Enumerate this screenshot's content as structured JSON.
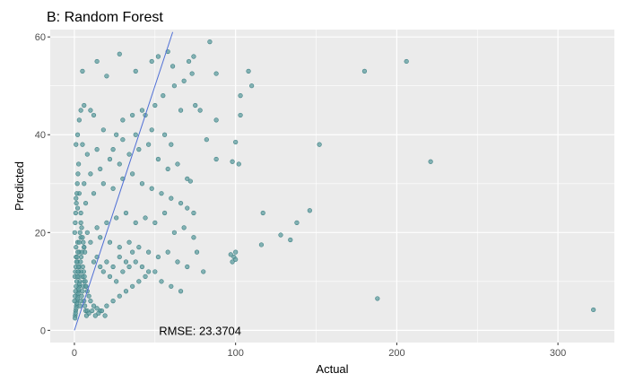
{
  "chart_data": {
    "type": "scatter",
    "title": "B: Random Forest",
    "xlabel": "Actual",
    "ylabel": "Predicted",
    "xlim": [
      -15,
      335
    ],
    "ylim": [
      -2.5,
      61.5
    ],
    "x_ticks": [
      0,
      100,
      200,
      300
    ],
    "y_ticks": [
      0,
      20,
      40,
      60
    ],
    "x_tick_labels": [
      "0",
      "100",
      "200",
      "300"
    ],
    "y_tick_labels": [
      "0",
      "20",
      "40",
      "60"
    ],
    "grid": true,
    "annotation": "RMSE: 23.3704",
    "annotation_pos": {
      "x": 78,
      "y": 0
    },
    "reference_line": {
      "slope": 1,
      "intercept": 0
    },
    "colors": {
      "points": "#5f9ea0",
      "point_edge": "#3d7f82",
      "line": "#4f6fd6",
      "panel": "#ebebeb",
      "grid": "#ffffff"
    },
    "points": [
      [
        206,
        55
      ],
      [
        180,
        53
      ],
      [
        152,
        38
      ],
      [
        221,
        34.5
      ],
      [
        188,
        6.5
      ],
      [
        322,
        4.2
      ],
      [
        146,
        24.5
      ],
      [
        138,
        22
      ],
      [
        134,
        18.5
      ],
      [
        128,
        19.5
      ],
      [
        116,
        17.5
      ],
      [
        117,
        24
      ],
      [
        108,
        53
      ],
      [
        110,
        50
      ],
      [
        100,
        38.5
      ],
      [
        98,
        34.5
      ],
      [
        102,
        34
      ],
      [
        103,
        48
      ],
      [
        103,
        44
      ],
      [
        100,
        16
      ],
      [
        99,
        15
      ],
      [
        97,
        15.5
      ],
      [
        100,
        14.5
      ],
      [
        98,
        14
      ],
      [
        84,
        59
      ],
      [
        74,
        56
      ],
      [
        71,
        55
      ],
      [
        73,
        52.5
      ],
      [
        88,
        52.5
      ],
      [
        61,
        54
      ],
      [
        52,
        56
      ],
      [
        28,
        56.5
      ],
      [
        5,
        53
      ],
      [
        14,
        55
      ],
      [
        20,
        52
      ],
      [
        38,
        53
      ],
      [
        48,
        55
      ],
      [
        58,
        57
      ],
      [
        88,
        43
      ],
      [
        78,
        45
      ],
      [
        75,
        46
      ],
      [
        66,
        45
      ],
      [
        82,
        39
      ],
      [
        88,
        35
      ],
      [
        72,
        30.5
      ],
      [
        70,
        31
      ],
      [
        55,
        48
      ],
      [
        62,
        50
      ],
      [
        68,
        51
      ],
      [
        50,
        46
      ],
      [
        44,
        44
      ],
      [
        42,
        45
      ],
      [
        36,
        44
      ],
      [
        30,
        43
      ],
      [
        26,
        40
      ],
      [
        18,
        41
      ],
      [
        12,
        44
      ],
      [
        10,
        45
      ],
      [
        6,
        46
      ],
      [
        4,
        45
      ],
      [
        3,
        43
      ],
      [
        2,
        40
      ],
      [
        1,
        38
      ],
      [
        5,
        38
      ],
      [
        8,
        36
      ],
      [
        14,
        37
      ],
      [
        22,
        35
      ],
      [
        28,
        34
      ],
      [
        34,
        36
      ],
      [
        40,
        37
      ],
      [
        46,
        38
      ],
      [
        52,
        35
      ],
      [
        58,
        33
      ],
      [
        64,
        34
      ],
      [
        60,
        38
      ],
      [
        56,
        40
      ],
      [
        48,
        41
      ],
      [
        38,
        40
      ],
      [
        30,
        39
      ],
      [
        24,
        37
      ],
      [
        16,
        33
      ],
      [
        10,
        32
      ],
      [
        6,
        30
      ],
      [
        3,
        28
      ],
      [
        1,
        27
      ],
      [
        2,
        25
      ],
      [
        4,
        24
      ],
      [
        7,
        26
      ],
      [
        12,
        28
      ],
      [
        18,
        30
      ],
      [
        24,
        29
      ],
      [
        30,
        31
      ],
      [
        36,
        32
      ],
      [
        42,
        30
      ],
      [
        48,
        29
      ],
      [
        54,
        28
      ],
      [
        60,
        27
      ],
      [
        66,
        26
      ],
      [
        70,
        25
      ],
      [
        74,
        24
      ],
      [
        56,
        24
      ],
      [
        50,
        22
      ],
      [
        44,
        23
      ],
      [
        38,
        22
      ],
      [
        32,
        24
      ],
      [
        26,
        23
      ],
      [
        20,
        22
      ],
      [
        14,
        21
      ],
      [
        8,
        20
      ],
      [
        4,
        19
      ],
      [
        2,
        18
      ],
      [
        1,
        17
      ],
      [
        3,
        16
      ],
      [
        6,
        17
      ],
      [
        10,
        18
      ],
      [
        16,
        19
      ],
      [
        22,
        18
      ],
      [
        28,
        17
      ],
      [
        34,
        18
      ],
      [
        40,
        17
      ],
      [
        46,
        16
      ],
      [
        52,
        15
      ],
      [
        58,
        16
      ],
      [
        64,
        14
      ],
      [
        70,
        13
      ],
      [
        76,
        16
      ],
      [
        80,
        12
      ],
      [
        74,
        19
      ],
      [
        62,
        20
      ],
      [
        68,
        21
      ],
      [
        1,
        15
      ],
      [
        2,
        14
      ],
      [
        3,
        13
      ],
      [
        4,
        12
      ],
      [
        5,
        11
      ],
      [
        6,
        10
      ],
      [
        7,
        9
      ],
      [
        8,
        8
      ],
      [
        9,
        7
      ],
      [
        10,
        6
      ],
      [
        12,
        5
      ],
      [
        14,
        4.5
      ],
      [
        16,
        4
      ],
      [
        20,
        5
      ],
      [
        24,
        6
      ],
      [
        28,
        7
      ],
      [
        32,
        8
      ],
      [
        36,
        9
      ],
      [
        40,
        10
      ],
      [
        44,
        11
      ],
      [
        50,
        12
      ],
      [
        54,
        10
      ],
      [
        60,
        9
      ],
      [
        66,
        8
      ],
      [
        18,
        12
      ],
      [
        22,
        11
      ],
      [
        26,
        10
      ],
      [
        30,
        12
      ],
      [
        34,
        13
      ],
      [
        38,
        14
      ],
      [
        42,
        13
      ],
      [
        46,
        12
      ],
      [
        12,
        14
      ],
      [
        14,
        15
      ],
      [
        16,
        13
      ],
      [
        20,
        14
      ],
      [
        24,
        13
      ],
      [
        28,
        15
      ],
      [
        32,
        14
      ],
      [
        36,
        16
      ],
      [
        0.5,
        3
      ],
      [
        0.8,
        4
      ],
      [
        1.2,
        5
      ],
      [
        1.6,
        6
      ],
      [
        2,
        7
      ],
      [
        2.4,
        8
      ],
      [
        2.8,
        9
      ],
      [
        3.2,
        10
      ],
      [
        0.3,
        11
      ],
      [
        0.6,
        12
      ],
      [
        0.9,
        13
      ],
      [
        1.3,
        14
      ],
      [
        1.7,
        15
      ],
      [
        2.1,
        16
      ],
      [
        2.5,
        12
      ],
      [
        2.9,
        11
      ],
      [
        0.4,
        2.5
      ],
      [
        0.7,
        3.5
      ],
      [
        1.1,
        4.5
      ],
      [
        1.5,
        5.5
      ],
      [
        1.9,
        6.5
      ],
      [
        2.3,
        7.5
      ],
      [
        2.7,
        8.5
      ],
      [
        3.1,
        9.5
      ],
      [
        0.2,
        20
      ],
      [
        0.5,
        22
      ],
      [
        0.8,
        24
      ],
      [
        1.2,
        26
      ],
      [
        1.5,
        28
      ],
      [
        1.8,
        30
      ],
      [
        2.2,
        32
      ],
      [
        2.6,
        34
      ],
      [
        3.5,
        5
      ],
      [
        4,
        6
      ],
      [
        4.5,
        7
      ],
      [
        5,
        8
      ],
      [
        5.5,
        9
      ],
      [
        6,
        6
      ],
      [
        6.5,
        5
      ],
      [
        7,
        4
      ],
      [
        3.8,
        14
      ],
      [
        4.2,
        15
      ],
      [
        4.8,
        16
      ],
      [
        5.2,
        13
      ],
      [
        5.8,
        12
      ],
      [
        6.2,
        11
      ],
      [
        6.8,
        10
      ],
      [
        7.2,
        9
      ],
      [
        7.5,
        3
      ],
      [
        8,
        4
      ],
      [
        9,
        3.5
      ],
      [
        11,
        4
      ],
      [
        13,
        3
      ],
      [
        15,
        3.5
      ],
      [
        17,
        4
      ],
      [
        19,
        3
      ],
      [
        0.1,
        6
      ],
      [
        0.4,
        7
      ],
      [
        0.7,
        8
      ],
      [
        1.0,
        9
      ],
      [
        1.4,
        10
      ],
      [
        1.8,
        11
      ],
      [
        2.2,
        12
      ],
      [
        2.6,
        13
      ],
      [
        3,
        18
      ],
      [
        3.5,
        20
      ],
      [
        4,
        22
      ],
      [
        4.5,
        21
      ],
      [
        5,
        19
      ],
      [
        5.5,
        18
      ],
      [
        6,
        17
      ],
      [
        6.5,
        16
      ]
    ]
  }
}
